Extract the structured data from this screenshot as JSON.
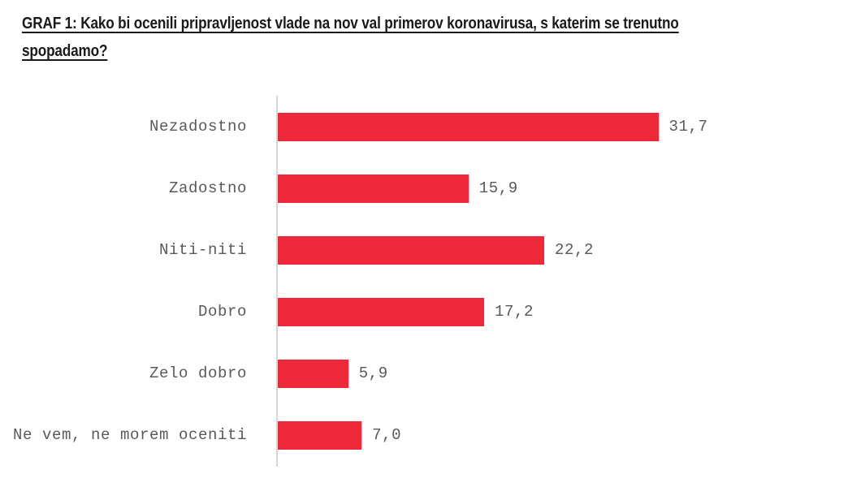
{
  "page": {
    "background": "#ffffff"
  },
  "header": {
    "title_line1": "GRAF 1: Kako bi ocenili pripravljenost vlade na nov val primerov koronavirusa, s katerim se trenutno",
    "title_line2": "spopadamo?"
  },
  "colors": {
    "bar": "#ed2939",
    "label_text": "#595959",
    "axis_line": "#d6d6d6",
    "title_text": "#1a1a1a"
  },
  "chart_data": {
    "type": "bar",
    "orientation": "horizontal",
    "title": "GRAF 1: Kako bi ocenili pripravljenost vlade na nov val primerov koronavirusa, s katerim se trenutno spopadamo?",
    "categories": [
      "Nezadostno",
      "Zadostno",
      "Niti-niti",
      "Dobro",
      "Zelo dobro",
      "Ne vem, ne morem oceniti"
    ],
    "values": [
      31.7,
      15.9,
      22.2,
      17.2,
      5.9,
      7.0
    ],
    "value_labels": [
      "31,7",
      "15,9",
      "22,2",
      "17,2",
      "5,9",
      "7,0"
    ],
    "xlabel": "",
    "ylabel": "",
    "xlim": [
      0,
      31.7
    ],
    "grid": false,
    "legend": false,
    "bar_color": "#ed2939",
    "value_label_position": "right-of-bar"
  }
}
